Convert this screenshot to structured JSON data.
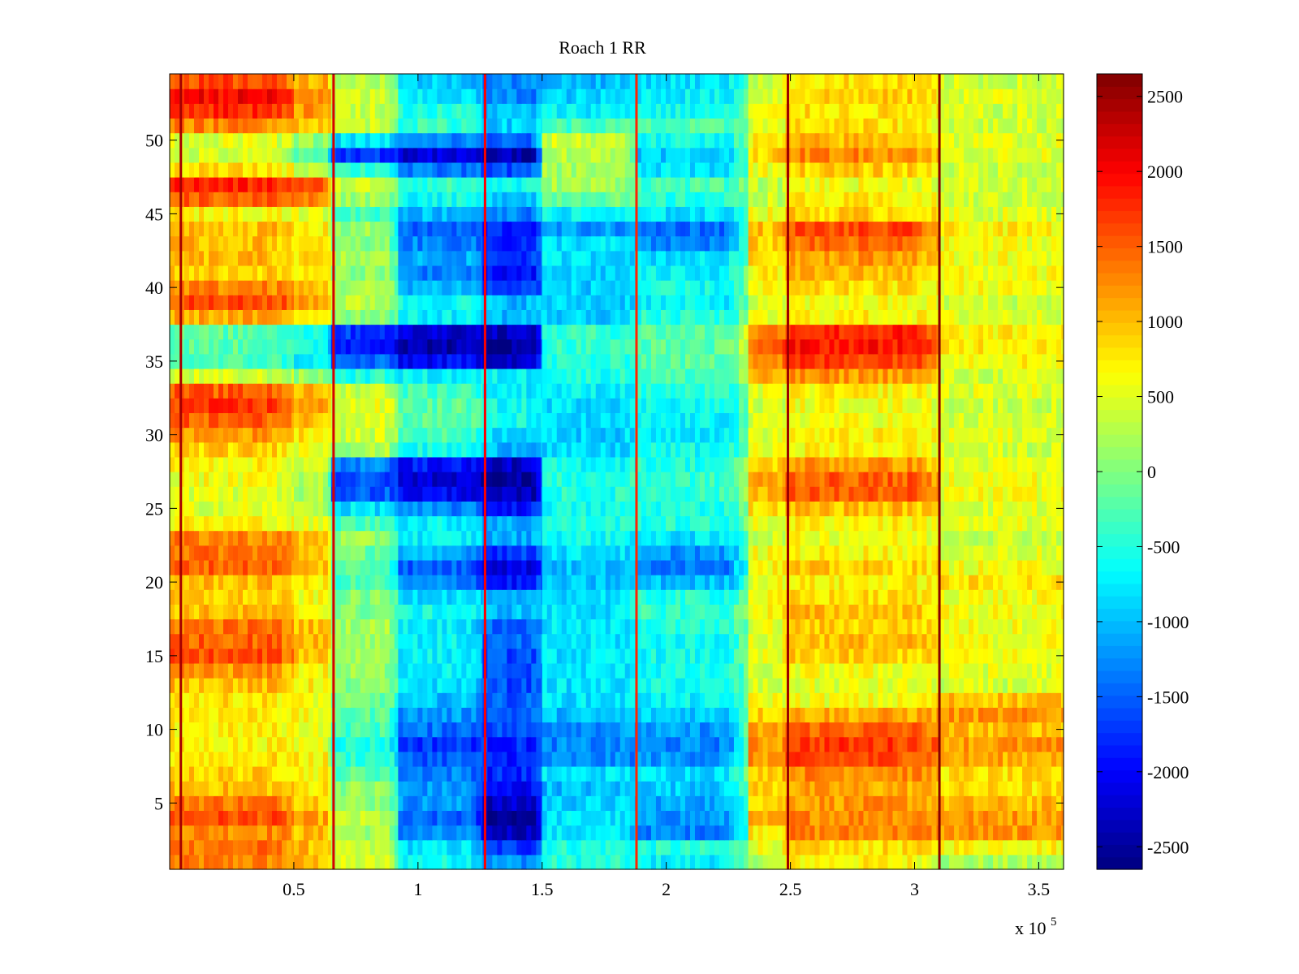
{
  "chart_data": {
    "type": "heatmap",
    "title": "Roach 1 RR",
    "xlabel": "",
    "ylabel": "",
    "x_multiplier_label": "x 10",
    "x_multiplier_exponent": "5",
    "xlim": [
      0,
      360000
    ],
    "ylim": [
      0.5,
      54.5
    ],
    "x_ticks": [
      50000,
      100000,
      150000,
      200000,
      250000,
      300000,
      350000
    ],
    "x_tick_labels": [
      "0.5",
      "1",
      "1.5",
      "2",
      "2.5",
      "3",
      "3.5"
    ],
    "y_ticks": [
      5,
      10,
      15,
      20,
      25,
      30,
      35,
      40,
      45,
      50
    ],
    "y_tick_labels": [
      "5",
      "10",
      "15",
      "20",
      "25",
      "30",
      "35",
      "40",
      "45",
      "50"
    ],
    "rows": 54,
    "colorbar": {
      "colormap": "jet",
      "clim": [
        -2650,
        2650
      ],
      "ticks": [
        -2500,
        -2000,
        -1500,
        -1000,
        -500,
        0,
        500,
        1000,
        1500,
        2000,
        2500
      ],
      "tick_labels": [
        "-2500",
        "-2000",
        "-1500",
        "-1000",
        "-500",
        "0",
        "500",
        "1000",
        "1500",
        "2000",
        "2500"
      ]
    },
    "time_segments_x": [
      0,
      50000,
      65000,
      92000,
      126000,
      150000,
      188000,
      233000,
      248000,
      310000,
      360000
    ],
    "segment_values": [
      [
        1300,
        1000,
        400,
        -600,
        -1200,
        -500,
        -700,
        300,
        700,
        200
      ],
      [
        1400,
        1000,
        300,
        -800,
        -1700,
        -500,
        -500,
        600,
        800,
        700
      ],
      [
        1300,
        1000,
        200,
        -1300,
        -2300,
        -800,
        -1300,
        800,
        1300,
        1200
      ],
      [
        1600,
        1100,
        300,
        -1500,
        -2500,
        -800,
        -1200,
        1000,
        1300,
        1200
      ],
      [
        1400,
        1000,
        100,
        -1200,
        -2300,
        -900,
        -1100,
        900,
        1200,
        1000
      ],
      [
        1000,
        800,
        100,
        -1200,
        -2000,
        -1000,
        -900,
        900,
        1100,
        800
      ],
      [
        900,
        700,
        -200,
        -1300,
        -1800,
        -800,
        -800,
        1000,
        1300,
        800
      ],
      [
        800,
        700,
        -400,
        -1500,
        -1800,
        -1300,
        -1200,
        1200,
        1600,
        1100
      ],
      [
        700,
        600,
        -500,
        -1700,
        -1800,
        -1300,
        -1300,
        1200,
        1700,
        1200
      ],
      [
        700,
        600,
        -300,
        -1400,
        -1600,
        -1200,
        -1200,
        1100,
        1500,
        1000
      ],
      [
        800,
        600,
        -200,
        -1200,
        -1500,
        -1000,
        -900,
        900,
        1100,
        1200
      ],
      [
        800,
        600,
        -100,
        -1000,
        -1500,
        -800,
        -700,
        600,
        600,
        1000
      ],
      [
        1000,
        700,
        0,
        -800,
        -1600,
        -800,
        -600,
        400,
        500,
        400
      ],
      [
        1200,
        700,
        100,
        -700,
        -1600,
        -800,
        -600,
        400,
        600,
        500
      ],
      [
        1600,
        1000,
        200,
        -700,
        -1600,
        -800,
        -600,
        500,
        900,
        600
      ],
      [
        1500,
        1100,
        200,
        -700,
        -1500,
        -800,
        -600,
        500,
        1000,
        600
      ],
      [
        1400,
        1000,
        200,
        -700,
        -1500,
        -800,
        -500,
        500,
        900,
        600
      ],
      [
        1000,
        700,
        0,
        -600,
        -1000,
        -800,
        -400,
        700,
        1000,
        600
      ],
      [
        900,
        600,
        0,
        -800,
        -1200,
        -800,
        -500,
        600,
        800,
        600
      ],
      [
        1000,
        700,
        -300,
        -1300,
        -1900,
        -1000,
        -1000,
        600,
        700,
        800
      ],
      [
        1500,
        1000,
        -200,
        -1500,
        -2100,
        -1000,
        -1300,
        700,
        900,
        600
      ],
      [
        1400,
        1000,
        -100,
        -1100,
        -1700,
        -800,
        -1200,
        600,
        700,
        500
      ],
      [
        1300,
        1000,
        100,
        -700,
        -1100,
        -600,
        -800,
        400,
        600,
        400
      ],
      [
        700,
        500,
        -300,
        -700,
        -1100,
        -500,
        -500,
        500,
        700,
        500
      ],
      [
        500,
        300,
        -800,
        -1300,
        -1900,
        -600,
        -500,
        800,
        1000,
        500
      ],
      [
        500,
        200,
        -1500,
        -2000,
        -2400,
        -500,
        -400,
        1100,
        1500,
        600
      ],
      [
        600,
        300,
        -1600,
        -2200,
        -2500,
        -500,
        -400,
        1100,
        1500,
        600
      ],
      [
        700,
        400,
        -1300,
        -1900,
        -2300,
        -600,
        -500,
        900,
        1200,
        500
      ],
      [
        900,
        600,
        200,
        -600,
        -1000,
        -900,
        -600,
        500,
        700,
        400
      ],
      [
        1200,
        800,
        400,
        -300,
        -800,
        -900,
        -700,
        500,
        700,
        500
      ],
      [
        1500,
        1000,
        500,
        -200,
        -600,
        -900,
        -700,
        400,
        600,
        400
      ],
      [
        1700,
        1100,
        500,
        -200,
        -600,
        -800,
        -600,
        400,
        600,
        400
      ],
      [
        1500,
        1000,
        400,
        -300,
        -700,
        -700,
        -500,
        500,
        700,
        500
      ],
      [
        400,
        100,
        -500,
        -700,
        -700,
        -500,
        -300,
        1000,
        1200,
        400
      ],
      [
        -300,
        -700,
        -1500,
        -2000,
        -2200,
        -500,
        -200,
        1300,
        1700,
        700
      ],
      [
        -200,
        -600,
        -1800,
        -2400,
        -2500,
        -400,
        -200,
        1500,
        1900,
        800
      ],
      [
        -200,
        -500,
        -1700,
        -2200,
        -2300,
        -400,
        -200,
        1300,
        1800,
        700
      ],
      [
        1100,
        800,
        100,
        -700,
        -1000,
        -900,
        -500,
        500,
        700,
        500
      ],
      [
        1600,
        1200,
        300,
        -600,
        -1000,
        -900,
        -700,
        400,
        600,
        400
      ],
      [
        1300,
        1000,
        200,
        -1000,
        -1700,
        -900,
        -600,
        600,
        800,
        600
      ],
      [
        900,
        700,
        100,
        -1300,
        -2000,
        -900,
        -700,
        700,
        1000,
        600
      ],
      [
        1000,
        800,
        200,
        -1100,
        -1700,
        -800,
        -800,
        800,
        1200,
        600
      ],
      [
        1000,
        700,
        0,
        -1300,
        -1800,
        -800,
        -1300,
        900,
        1400,
        600
      ],
      [
        1000,
        700,
        100,
        -1500,
        -1800,
        -1200,
        -1400,
        1000,
        1600,
        700
      ],
      [
        700,
        500,
        -300,
        -1000,
        -1300,
        -700,
        -800,
        600,
        900,
        500
      ],
      [
        1500,
        1300,
        200,
        -600,
        -900,
        -100,
        -500,
        400,
        700,
        400
      ],
      [
        1800,
        1500,
        400,
        -400,
        -600,
        200,
        -300,
        300,
        600,
        400
      ],
      [
        800,
        400,
        -400,
        -1400,
        -1600,
        200,
        -800,
        600,
        900,
        400
      ],
      [
        400,
        -300,
        -1700,
        -2200,
        -2400,
        300,
        -900,
        900,
        1300,
        500
      ],
      [
        500,
        100,
        -800,
        -1300,
        -1500,
        400,
        -600,
        700,
        1000,
        500
      ],
      [
        1300,
        1000,
        400,
        -400,
        -900,
        -300,
        -300,
        500,
        800,
        400
      ],
      [
        1800,
        1200,
        400,
        -500,
        -1000,
        -700,
        -600,
        600,
        800,
        400
      ],
      [
        2000,
        1300,
        400,
        -800,
        -1300,
        -900,
        -700,
        500,
        900,
        500
      ],
      [
        1600,
        1100,
        300,
        -900,
        -1300,
        -1000,
        -800,
        400,
        800,
        400
      ]
    ],
    "vertical_lines_x": [
      4500,
      66000,
      127000,
      188000,
      249000,
      310000
    ],
    "vertical_line_values": [
      2450,
      2200,
      2000,
      1800,
      2500,
      2600
    ]
  }
}
